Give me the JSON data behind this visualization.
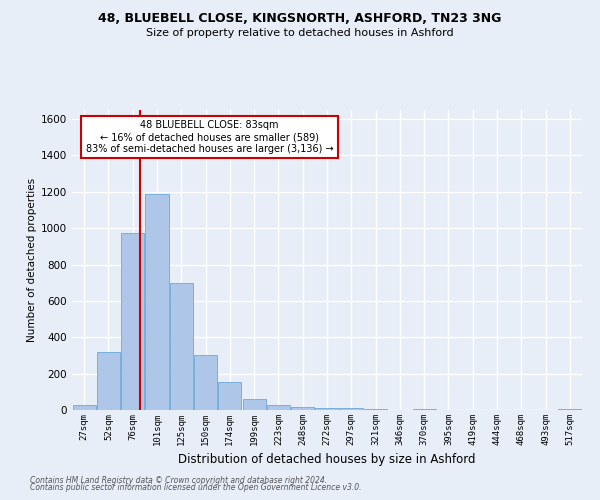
{
  "title1": "48, BLUEBELL CLOSE, KINGSNORTH, ASHFORD, TN23 3NG",
  "title2": "Size of property relative to detached houses in Ashford",
  "xlabel": "Distribution of detached houses by size in Ashford",
  "ylabel": "Number of detached properties",
  "categories": [
    "27sqm",
    "52sqm",
    "76sqm",
    "101sqm",
    "125sqm",
    "150sqm",
    "174sqm",
    "199sqm",
    "223sqm",
    "248sqm",
    "272sqm",
    "297sqm",
    "321sqm",
    "346sqm",
    "370sqm",
    "395sqm",
    "419sqm",
    "444sqm",
    "468sqm",
    "493sqm",
    "517sqm"
  ],
  "values": [
    25,
    320,
    975,
    1190,
    700,
    305,
    155,
    60,
    25,
    15,
    12,
    12,
    8,
    0,
    8,
    0,
    0,
    0,
    0,
    0,
    8
  ],
  "bar_color": "#aec6e8",
  "bar_edge_color": "#5a9fd4",
  "background_color": "#e8eef7",
  "grid_color": "#ffffff",
  "annotation_text1": "48 BLUEBELL CLOSE: 83sqm",
  "annotation_text2": "← 16% of detached houses are smaller (589)",
  "annotation_text3": "83% of semi-detached houses are larger (3,136) →",
  "annotation_box_color": "#ffffff",
  "annotation_border_color": "#cc0000",
  "red_line_index": 2.28,
  "ylim": [
    0,
    1650
  ],
  "yticks": [
    0,
    200,
    400,
    600,
    800,
    1000,
    1200,
    1400,
    1600
  ],
  "footer1": "Contains HM Land Registry data © Crown copyright and database right 2024.",
  "footer2": "Contains public sector information licensed under the Open Government Licence v3.0."
}
